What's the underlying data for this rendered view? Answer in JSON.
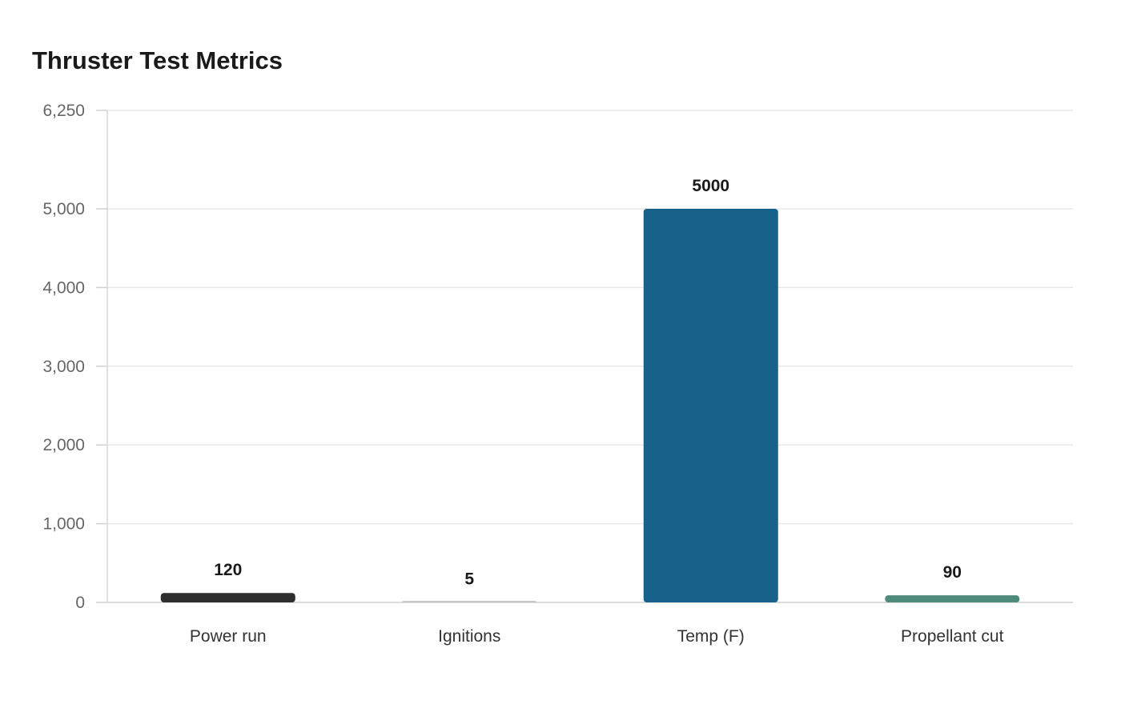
{
  "chart_data": {
    "type": "bar",
    "title": "Thruster Test Metrics",
    "xlabel": "",
    "ylabel": "",
    "categories": [
      "Power run",
      "Ignitions",
      "Temp (F)",
      "Propellant cut"
    ],
    "values": [
      120,
      5,
      5000,
      90
    ],
    "colors": [
      "#2e2e2e",
      "#c8c8c8",
      "#17628a",
      "#4f8b7c"
    ],
    "ylim": [
      0,
      6250
    ],
    "yticks": [
      0,
      1000,
      2000,
      3000,
      4000,
      5000,
      6250
    ],
    "ytick_labels": [
      "0",
      "1,000",
      "2,000",
      "3,000",
      "4,000",
      "5,000",
      "6,250"
    ],
    "grid": true,
    "legend": "none"
  }
}
